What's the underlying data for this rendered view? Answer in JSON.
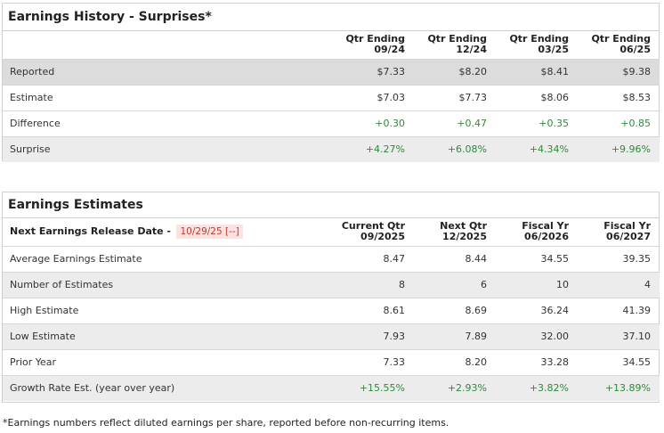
{
  "history": {
    "title": "Earnings History - Surprises*",
    "columns": [
      {
        "line1": "Qtr Ending",
        "line2": "09/24"
      },
      {
        "line1": "Qtr Ending",
        "line2": "12/24"
      },
      {
        "line1": "Qtr Ending",
        "line2": "03/25"
      },
      {
        "line1": "Qtr Ending",
        "line2": "06/25"
      }
    ],
    "rows": [
      {
        "label": "Reported",
        "values": [
          "$7.33",
          "$8.20",
          "$8.41",
          "$9.38"
        ]
      },
      {
        "label": "Estimate",
        "values": [
          "$7.03",
          "$7.73",
          "$8.06",
          "$8.53"
        ]
      },
      {
        "label": "Difference",
        "values": [
          "+0.30",
          "+0.47",
          "+0.35",
          "+0.85"
        ]
      },
      {
        "label": "Surprise",
        "values": [
          "+4.27%",
          "+6.08%",
          "+4.34%",
          "+9.96%"
        ]
      }
    ]
  },
  "estimates": {
    "title": "Earnings Estimates",
    "release_label": "Next Earnings Release Date -",
    "release_date": "10/29/25 [--]",
    "columns": [
      {
        "line1": "Current Qtr",
        "line2": "09/2025"
      },
      {
        "line1": "Next Qtr",
        "line2": "12/2025"
      },
      {
        "line1": "Fiscal Yr",
        "line2": "06/2026"
      },
      {
        "line1": "Fiscal Yr",
        "line2": "06/2027"
      }
    ],
    "rows": [
      {
        "label": "Average Earnings Estimate",
        "values": [
          "8.47",
          "8.44",
          "34.55",
          "39.35"
        ]
      },
      {
        "label": "Number of Estimates",
        "values": [
          "8",
          "6",
          "10",
          "4"
        ]
      },
      {
        "label": "High Estimate",
        "values": [
          "8.61",
          "8.69",
          "36.24",
          "41.39"
        ]
      },
      {
        "label": "Low Estimate",
        "values": [
          "7.93",
          "7.89",
          "32.00",
          "37.10"
        ]
      },
      {
        "label": "Prior Year",
        "values": [
          "7.33",
          "8.20",
          "33.28",
          "34.55"
        ]
      },
      {
        "label": "Growth Rate Est. (year over year)",
        "values": [
          "+15.55%",
          "+2.93%",
          "+3.82%",
          "+13.89%"
        ]
      }
    ]
  },
  "footnote": "*Earnings numbers reflect diluted earnings per share, reported before non-recurring items.",
  "colors": {
    "positive": "#2e8b3a",
    "release_bg": "#fde2e2",
    "release_text": "#c0392b"
  }
}
